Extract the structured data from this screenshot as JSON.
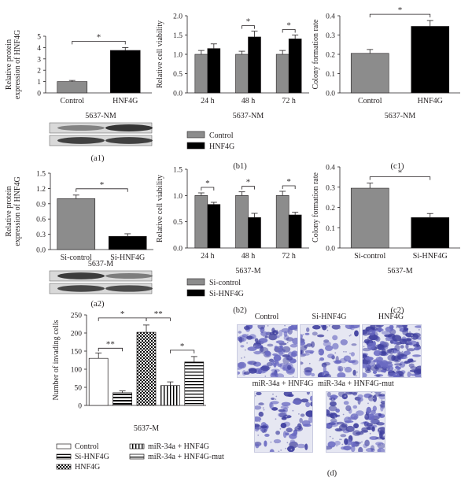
{
  "colors": {
    "control_gray": "#8c8c8c",
    "hnf4g_black": "#000000",
    "ink": "#231f20",
    "stain_blue": "#5f5fb4",
    "background": "#ffffff"
  },
  "panel_labels": {
    "a1": "(a1)",
    "b1": "(b1)",
    "c1": "(c1)",
    "a2": "(a2)",
    "b2": "(b2)",
    "c2": "(c2)",
    "d": "(d)"
  },
  "significance_mark": "*",
  "significance_mark_double": "**",
  "blots": {
    "a1_caption": "5637-NM",
    "a2_caption": "5637-M"
  },
  "chart_data": [
    {
      "id": "a1",
      "type": "bar",
      "ylabel": "Relative protein expression of HNF4G",
      "xlabel": "",
      "ylim": [
        0,
        5
      ],
      "yticks": [
        0,
        1,
        2,
        3,
        4,
        5
      ],
      "categories": [
        "Control",
        "HNF4G"
      ],
      "values": [
        1.0,
        3.75
      ],
      "errors": [
        0.1,
        0.25
      ],
      "colors": [
        "#8c8c8c",
        "#000000"
      ],
      "significance": [
        {
          "from": 0,
          "to": 1,
          "mark": "*"
        }
      ]
    },
    {
      "id": "b1",
      "type": "bar",
      "ylabel": "Relative cell viability",
      "xlabel": "5637-NM",
      "ylim": [
        0,
        2.0
      ],
      "yticks": [
        0,
        0.5,
        1.0,
        1.5,
        2.0
      ],
      "categories": [
        "24 h",
        "48 h",
        "72 h"
      ],
      "series": [
        {
          "name": "Control",
          "values": [
            1.0,
            1.0,
            1.0
          ],
          "errors": [
            0.1,
            0.08,
            0.1
          ],
          "color": "#8c8c8c"
        },
        {
          "name": "HNF4G",
          "values": [
            1.15,
            1.45,
            1.4
          ],
          "errors": [
            0.12,
            0.15,
            0.1
          ],
          "color": "#000000"
        }
      ],
      "significance": [
        {
          "group": 1,
          "mark": "*"
        },
        {
          "group": 2,
          "mark": "*"
        }
      ]
    },
    {
      "id": "c1",
      "type": "bar",
      "ylabel": "Colony formation rate",
      "xlabel": "5637-NM",
      "ylim": [
        0,
        0.4
      ],
      "yticks": [
        0,
        0.1,
        0.2,
        0.3,
        0.4
      ],
      "categories": [
        "Control",
        "HNF4G"
      ],
      "values": [
        0.205,
        0.345
      ],
      "errors": [
        0.02,
        0.03
      ],
      "colors": [
        "#8c8c8c",
        "#000000"
      ],
      "significance": [
        {
          "from": 0,
          "to": 1,
          "mark": "*"
        }
      ]
    },
    {
      "id": "a2",
      "type": "bar",
      "ylabel": "Relative protein expression of HNF4G",
      "xlabel": "",
      "ylim": [
        0,
        1.5
      ],
      "yticks": [
        0,
        0.3,
        0.6,
        0.9,
        1.2,
        1.5
      ],
      "categories": [
        "Si-control",
        "Si-HNF4G"
      ],
      "values": [
        1.0,
        0.26
      ],
      "errors": [
        0.07,
        0.05
      ],
      "colors": [
        "#8c8c8c",
        "#000000"
      ],
      "significance": [
        {
          "from": 0,
          "to": 1,
          "mark": "*"
        }
      ]
    },
    {
      "id": "b2",
      "type": "bar",
      "ylabel": "Relative cell viability",
      "xlabel": "5637-M",
      "ylim": [
        0,
        1.5
      ],
      "yticks": [
        0,
        0.5,
        1.0,
        1.5
      ],
      "categories": [
        "24 h",
        "48 h",
        "72 h"
      ],
      "series": [
        {
          "name": "Si-control",
          "values": [
            1.0,
            1.0,
            1.0
          ],
          "errors": [
            0.05,
            0.07,
            0.08
          ],
          "color": "#8c8c8c"
        },
        {
          "name": "Si-HNF4G",
          "values": [
            0.83,
            0.58,
            0.63
          ],
          "errors": [
            0.04,
            0.08,
            0.05
          ],
          "color": "#000000"
        }
      ],
      "significance": [
        {
          "group": 0,
          "mark": "*"
        },
        {
          "group": 1,
          "mark": "*"
        },
        {
          "group": 2,
          "mark": "*"
        }
      ]
    },
    {
      "id": "c2",
      "type": "bar",
      "ylabel": "Colony formation rate",
      "xlabel": "5637-M",
      "ylim": [
        0,
        0.4
      ],
      "yticks": [
        0,
        0.1,
        0.2,
        0.3,
        0.4
      ],
      "categories": [
        "Si-control",
        "Si-HNF4G"
      ],
      "values": [
        0.295,
        0.15
      ],
      "errors": [
        0.025,
        0.02
      ],
      "colors": [
        "#8c8c8c",
        "#000000"
      ],
      "significance": [
        {
          "from": 0,
          "to": 1,
          "mark": "*"
        }
      ]
    },
    {
      "id": "d",
      "type": "bar",
      "ylabel": "Number of invading cells",
      "xlabel": "5637-M",
      "ylim": [
        0,
        250
      ],
      "yticks": [
        0,
        50,
        100,
        150,
        200,
        250
      ],
      "categories": [
        "Control",
        "Si-HNF4G",
        "HNF4G",
        "miR-34a + HNF4G",
        "miR-34a + HNF4G-mut"
      ],
      "values": [
        130,
        35,
        202,
        55,
        120
      ],
      "errors": [
        15,
        5,
        20,
        10,
        15
      ],
      "patterns": [
        "white",
        "hstripe",
        "check",
        "vstripe",
        "hline"
      ],
      "significance": [
        {
          "from": 0,
          "to": 1,
          "mark": "**"
        },
        {
          "from": 0,
          "to": 2,
          "mark": "*"
        },
        {
          "from": 2,
          "to": 3,
          "mark": "**"
        },
        {
          "from": 3,
          "to": 4,
          "mark": "*"
        }
      ]
    }
  ],
  "micrographs": {
    "labels": [
      "Control",
      "Si-HNF4G",
      "HNF4G",
      "miR-34a + HNF4G",
      "miR-34a + HNF4G-mut"
    ],
    "density": [
      0.55,
      0.22,
      0.9,
      0.25,
      0.62
    ]
  }
}
